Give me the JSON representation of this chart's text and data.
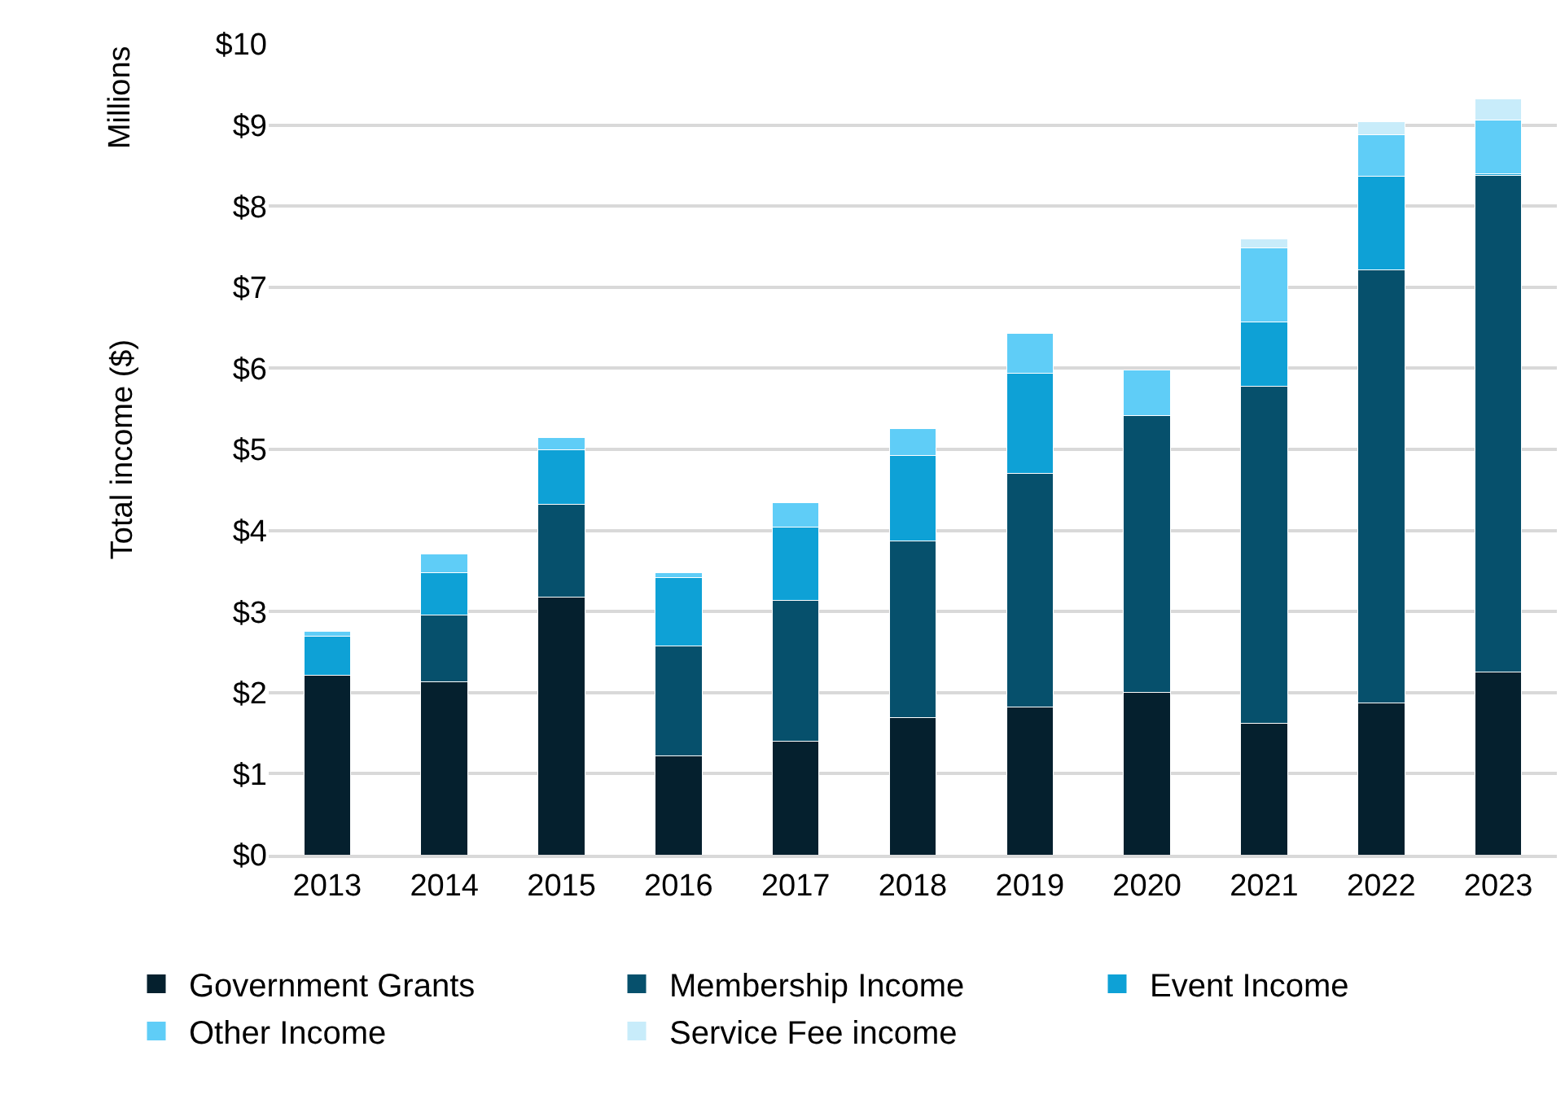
{
  "chart_data": {
    "type": "bar",
    "stacked": true,
    "ylabel": "Total income ($)",
    "annotations": [
      "Millions"
    ],
    "categories": [
      "2013",
      "2014",
      "2015",
      "2016",
      "2017",
      "2018",
      "2019",
      "2020",
      "2021",
      "2022",
      "2023"
    ],
    "series": [
      {
        "name": "Government Grants",
        "color": "#05202e",
        "values": [
          2.21,
          2.13,
          3.18,
          1.22,
          1.4,
          1.69,
          1.82,
          2.0,
          1.62,
          1.87,
          2.25
        ]
      },
      {
        "name": "Membership Income",
        "color": "#06506c",
        "values": [
          null,
          0.83,
          1.14,
          1.36,
          1.74,
          2.18,
          2.88,
          3.42,
          4.16,
          5.34,
          6.13
        ]
      },
      {
        "name": "Event Income",
        "color": "#0ea1d6",
        "values": [
          0.49,
          0.52,
          0.68,
          0.84,
          0.9,
          1.05,
          1.24,
          null,
          0.79,
          1.16,
          0.02
        ]
      },
      {
        "name": "Other Income",
        "color": "#5fcdf7",
        "values": [
          0.06,
          0.23,
          0.15,
          0.06,
          0.3,
          0.34,
          0.49,
          0.56,
          0.92,
          0.51,
          0.66
        ]
      },
      {
        "name": "Service Fee income",
        "color": "#c8ecfa",
        "values": [
          null,
          null,
          null,
          null,
          null,
          null,
          null,
          null,
          0.11,
          0.16,
          0.26
        ]
      }
    ],
    "ylim": [
      0,
      10
    ],
    "yticks": [
      {
        "value": 0,
        "label": "$0"
      },
      {
        "value": 1,
        "label": "$1"
      },
      {
        "value": 2,
        "label": "$2"
      },
      {
        "value": 3,
        "label": "$3"
      },
      {
        "value": 4,
        "label": "$4"
      },
      {
        "value": 5,
        "label": "$5"
      },
      {
        "value": 6,
        "label": "$6"
      },
      {
        "value": 7,
        "label": "$7"
      },
      {
        "value": 8,
        "label": "$8"
      },
      {
        "value": 9,
        "label": "$9"
      },
      {
        "value": 10,
        "label": "$10"
      }
    ],
    "grid": "y",
    "legend": "bottom"
  }
}
